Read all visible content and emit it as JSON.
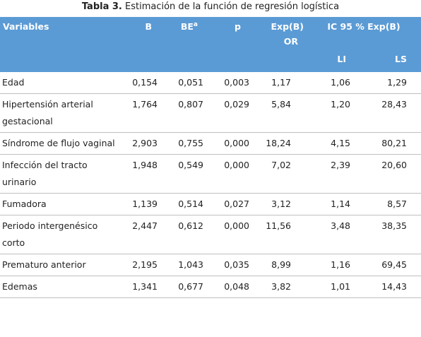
{
  "caption": {
    "bold": "Tabla 3.",
    "text": " Estimación de la función de regresión logística"
  },
  "header": {
    "variables": "Variables",
    "b": "B",
    "be": "BE",
    "be_sup": "a",
    "p": "p",
    "exp_b": "Exp(B)",
    "or": "OR",
    "ic": "IC 95 % Exp(B)",
    "li": "LI",
    "ls": "LS"
  },
  "rows": [
    {
      "variable": "Edad",
      "b": "0,154",
      "be": "0,051",
      "p": "0,003",
      "exp_b": "1,17",
      "li": "1,06",
      "ls": "1,29"
    },
    {
      "variable": "Hipertensión arterial gestacional",
      "b": "1,764",
      "be": "0,807",
      "p": "0,029",
      "exp_b": "5,84",
      "li": "1,20",
      "ls": "28,43"
    },
    {
      "variable": "Síndrome de flujo vaginal",
      "b": "2,903",
      "be": "0,755",
      "p": "0,000",
      "exp_b": "18,24",
      "li": "4,15",
      "ls": "80,21"
    },
    {
      "variable": "Infección del tracto urinario",
      "b": "1,948",
      "be": "0,549",
      "p": "0,000",
      "exp_b": "7,02",
      "li": "2,39",
      "ls": "20,60"
    },
    {
      "variable": "Fumadora",
      "b": "1,139",
      "be": "0,514",
      "p": "0,027",
      "exp_b": "3,12",
      "li": "1,14",
      "ls": "8,57"
    },
    {
      "variable": "Periodo intergenésico corto",
      "b": "2,447",
      "be": "0,612",
      "p": "0,000",
      "exp_b": "11,56",
      "li": "3,48",
      "ls": "38,35"
    },
    {
      "variable": "Prematuro anterior",
      "b": "2,195",
      "be": "1,043",
      "p": "0,035",
      "exp_b": "8,99",
      "li": "1,16",
      "ls": "69,45"
    },
    {
      "variable": "Edemas",
      "b": "1,341",
      "be": "0,677",
      "p": "0,048",
      "exp_b": "3,82",
      "li": "1,01",
      "ls": "14,43"
    }
  ]
}
